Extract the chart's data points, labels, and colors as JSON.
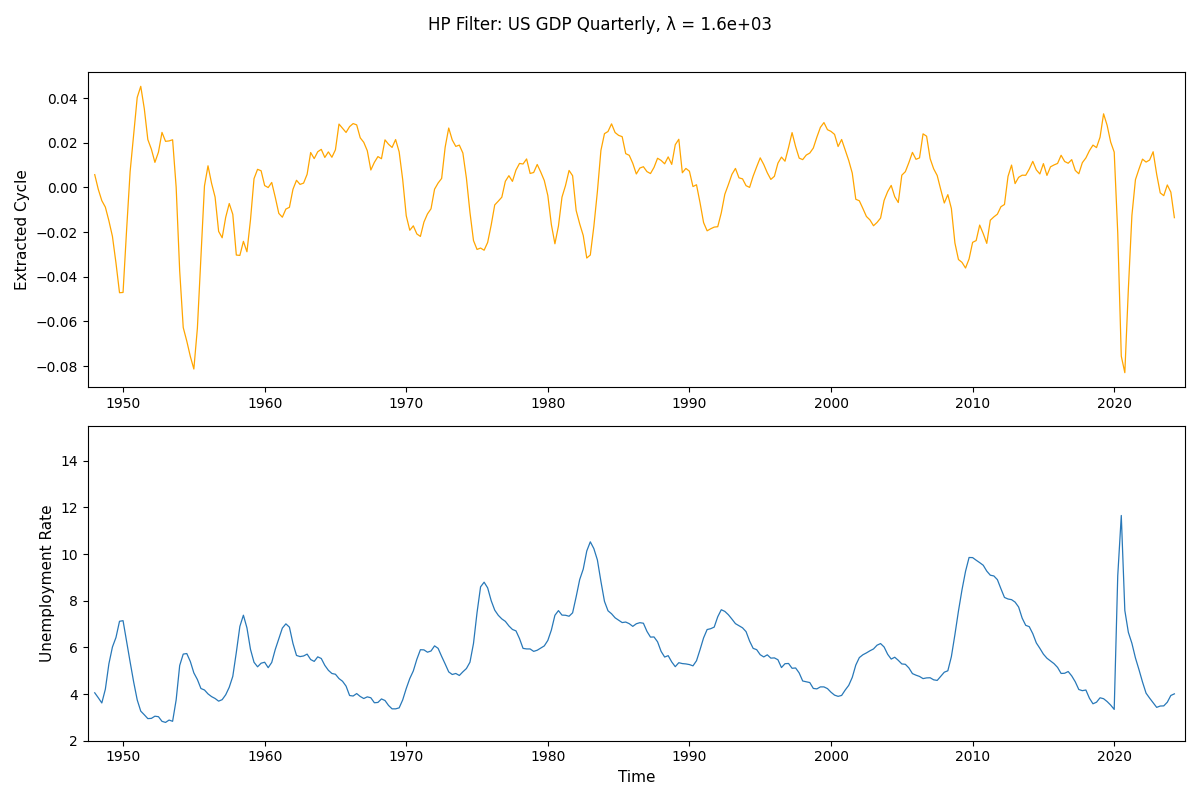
{
  "title": "HP Filter: US GDP Quarterly, λ = 1.6e+03",
  "top_ylabel": "Extracted Cycle",
  "bottom_ylabel": "Unemployment Rate",
  "xlabel": "Time",
  "top_color": "#FFA500",
  "bottom_color": "#2878B8",
  "figsize": [
    12.0,
    8.0
  ],
  "dpi": 100,
  "background": "#ffffff"
}
